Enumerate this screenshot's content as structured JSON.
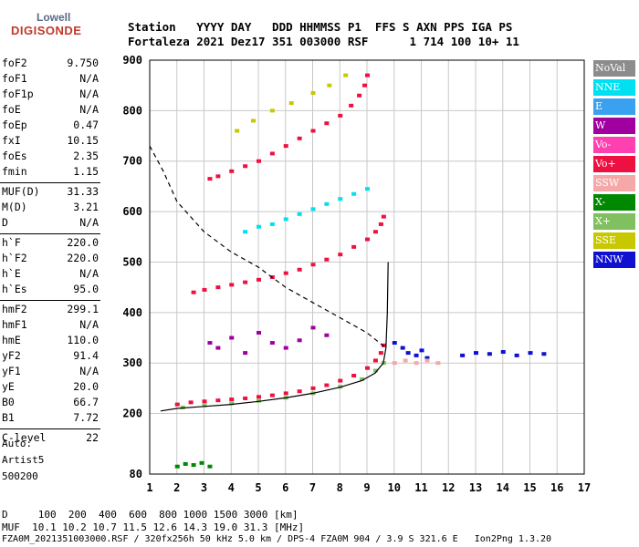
{
  "logo": {
    "line1": "Lowell",
    "line2": "DIGISONDE"
  },
  "header": {
    "line1": "Station   YYYY DAY   DDD HHMMSS P1  FFS S AXN PPS IGA PS",
    "line2": "Fortaleza 2021 Dez17 351 003000 RSF      1 714 100 10+ 11"
  },
  "params": [
    {
      "name": "foF2",
      "value": "9.750"
    },
    {
      "name": "foF1",
      "value": "N/A"
    },
    {
      "name": "foF1p",
      "value": "N/A"
    },
    {
      "name": "foE",
      "value": "N/A"
    },
    {
      "name": "foEp",
      "value": "0.47"
    },
    {
      "name": "fxI",
      "value": "10.15"
    },
    {
      "name": "foEs",
      "value": "2.35"
    },
    {
      "name": "fmin",
      "value": "1.15"
    },
    {
      "name": "MUF(D)",
      "value": "31.33"
    },
    {
      "name": "M(D)",
      "value": "3.21"
    },
    {
      "name": "D",
      "value": "N/A"
    },
    {
      "name": "h`F",
      "value": "220.0"
    },
    {
      "name": "h`F2",
      "value": "220.0"
    },
    {
      "name": "h`E",
      "value": "N/A"
    },
    {
      "name": "h`Es",
      "value": "95.0"
    },
    {
      "name": "hmF2",
      "value": "299.1"
    },
    {
      "name": "hmF1",
      "value": "N/A"
    },
    {
      "name": "hmE",
      "value": "110.0"
    },
    {
      "name": "yF2",
      "value": "91.4"
    },
    {
      "name": "yF1",
      "value": "N/A"
    },
    {
      "name": "yE",
      "value": "20.0"
    },
    {
      "name": "B0",
      "value": "66.7"
    },
    {
      "name": "B1",
      "value": "7.72"
    },
    {
      "name": "C-level",
      "value": "22"
    }
  ],
  "auto": {
    "line1": "Auto:",
    "line2": "Artist5",
    "line3": "500200"
  },
  "legend": [
    {
      "label": "NoVal",
      "color": "#8c8c8c"
    },
    {
      "label": "NNE",
      "color": "#00e0f0"
    },
    {
      "label": "E",
      "color": "#3aa0f0"
    },
    {
      "label": "W",
      "color": "#a000a0"
    },
    {
      "label": "Vo-",
      "color": "#ff40b0"
    },
    {
      "label": "Vo+",
      "color": "#ee1040"
    },
    {
      "label": "SSW",
      "color": "#f4a8a8"
    },
    {
      "label": "X-",
      "color": "#008800"
    },
    {
      "label": "X+",
      "color": "#80c060"
    },
    {
      "label": "SSE",
      "color": "#c8c800"
    },
    {
      "label": "NNW",
      "color": "#1010d0"
    }
  ],
  "footer": {
    "line1": "D     100  200  400  600  800 1000 1500 3000 [km]",
    "line2": "MUF  10.1 10.2 10.7 11.5 12.6 14.3 19.0 31.3 [MHz]",
    "line3": "FZA0M_2021351003000.RSF / 320fx256h 50 kHz 5.0 km / DPS-4 FZA0M 904 / 3.9 S 321.6 E   Ion2Png 1.3.20"
  },
  "chart_data": {
    "type": "scatter",
    "xlim": [
      1,
      17
    ],
    "ylim": [
      80,
      900
    ],
    "x_ticks": [
      1,
      2,
      3,
      4,
      5,
      6,
      7,
      8,
      9,
      10,
      11,
      12,
      13,
      14,
      15,
      16,
      17
    ],
    "y_ticks": [
      80,
      200,
      300,
      400,
      500,
      600,
      700,
      800,
      900
    ],
    "grid": true,
    "profile_solid": [
      [
        1.4,
        205
      ],
      [
        2,
        210
      ],
      [
        3,
        214
      ],
      [
        4,
        218
      ],
      [
        5,
        224
      ],
      [
        6,
        231
      ],
      [
        7,
        240
      ],
      [
        8,
        252
      ],
      [
        8.8,
        265
      ],
      [
        9.3,
        280
      ],
      [
        9.6,
        300
      ],
      [
        9.7,
        330
      ],
      [
        9.75,
        400
      ],
      [
        9.78,
        500
      ]
    ],
    "profile_dashed": [
      [
        1,
        730
      ],
      [
        1.5,
        680
      ],
      [
        2,
        620
      ],
      [
        3,
        560
      ],
      [
        4,
        520
      ],
      [
        5,
        490
      ],
      [
        6,
        450
      ],
      [
        7,
        420
      ],
      [
        8,
        390
      ],
      [
        9,
        360
      ],
      [
        9.7,
        330
      ]
    ],
    "traces": [
      {
        "name": "Vo+",
        "points": [
          [
            2.0,
            218
          ],
          [
            2.5,
            222
          ],
          [
            3,
            224
          ],
          [
            3.5,
            226
          ],
          [
            4,
            228
          ],
          [
            4.5,
            230
          ],
          [
            5,
            233
          ],
          [
            5.5,
            236
          ],
          [
            6,
            240
          ],
          [
            6.5,
            244
          ],
          [
            7,
            250
          ],
          [
            7.5,
            256
          ],
          [
            8,
            265
          ],
          [
            8.5,
            275
          ],
          [
            9,
            290
          ],
          [
            9.3,
            305
          ],
          [
            9.5,
            320
          ],
          [
            9.6,
            335
          ]
        ]
      },
      {
        "name": "X+",
        "points": [
          [
            2.2,
            212
          ],
          [
            3,
            216
          ],
          [
            4,
            220
          ],
          [
            5,
            225
          ],
          [
            6,
            231
          ],
          [
            7,
            240
          ],
          [
            8,
            253
          ],
          [
            8.8,
            268
          ],
          [
            9.3,
            285
          ],
          [
            9.6,
            300
          ]
        ]
      },
      {
        "name": "Vo+",
        "points": [
          [
            2.6,
            440
          ],
          [
            3,
            445
          ],
          [
            3.5,
            450
          ],
          [
            4,
            455
          ],
          [
            4.5,
            460
          ],
          [
            5,
            465
          ],
          [
            5.5,
            470
          ],
          [
            6,
            478
          ],
          [
            6.5,
            485
          ],
          [
            7,
            495
          ],
          [
            7.5,
            505
          ],
          [
            8,
            515
          ],
          [
            8.5,
            530
          ],
          [
            9,
            545
          ],
          [
            9.3,
            560
          ],
          [
            9.5,
            575
          ],
          [
            9.6,
            590
          ]
        ]
      },
      {
        "name": "Vo+",
        "points": [
          [
            3.2,
            665
          ],
          [
            3.5,
            670
          ],
          [
            4,
            680
          ],
          [
            4.5,
            690
          ],
          [
            5,
            700
          ],
          [
            5.5,
            715
          ],
          [
            6,
            730
          ],
          [
            6.5,
            745
          ],
          [
            7,
            760
          ],
          [
            7.5,
            775
          ],
          [
            8,
            790
          ],
          [
            8.4,
            810
          ],
          [
            8.7,
            830
          ],
          [
            8.9,
            850
          ],
          [
            9.0,
            870
          ]
        ]
      },
      {
        "name": "NNE",
        "points": [
          [
            4.5,
            560
          ],
          [
            5,
            570
          ],
          [
            5.5,
            575
          ],
          [
            6,
            585
          ],
          [
            6.5,
            595
          ],
          [
            7,
            605
          ],
          [
            7.5,
            615
          ],
          [
            8,
            625
          ],
          [
            8.5,
            635
          ],
          [
            9,
            645
          ]
        ]
      },
      {
        "name": "SSE",
        "points": [
          [
            4.2,
            760
          ],
          [
            4.8,
            780
          ],
          [
            5.5,
            800
          ],
          [
            6.2,
            815
          ],
          [
            7,
            835
          ],
          [
            7.6,
            850
          ],
          [
            8.2,
            870
          ]
        ]
      },
      {
        "name": "W",
        "points": [
          [
            3.2,
            340
          ],
          [
            3.5,
            330
          ],
          [
            4,
            350
          ],
          [
            4.5,
            320
          ],
          [
            5,
            360
          ],
          [
            5.5,
            340
          ],
          [
            6,
            330
          ],
          [
            6.5,
            345
          ],
          [
            7,
            370
          ],
          [
            7.5,
            355
          ]
        ]
      },
      {
        "name": "NNW",
        "points": [
          [
            12.5,
            315
          ],
          [
            13,
            320
          ],
          [
            13.5,
            318
          ],
          [
            14,
            322
          ],
          [
            14.5,
            315
          ],
          [
            15,
            320
          ],
          [
            15.5,
            318
          ]
        ]
      },
      {
        "name": "NNW",
        "points": [
          [
            10,
            340
          ],
          [
            10.3,
            330
          ],
          [
            10.5,
            320
          ],
          [
            10.8,
            315
          ],
          [
            11,
            325
          ],
          [
            11.2,
            310
          ]
        ]
      },
      {
        "name": "SSW",
        "points": [
          [
            10,
            300
          ],
          [
            10.4,
            305
          ],
          [
            10.8,
            300
          ],
          [
            11.2,
            305
          ],
          [
            11.6,
            300
          ]
        ]
      },
      {
        "name": "X-",
        "points": [
          [
            2,
            95
          ],
          [
            2.3,
            100
          ],
          [
            2.6,
            98
          ],
          [
            2.9,
            102
          ],
          [
            3.2,
            95
          ]
        ]
      }
    ]
  }
}
